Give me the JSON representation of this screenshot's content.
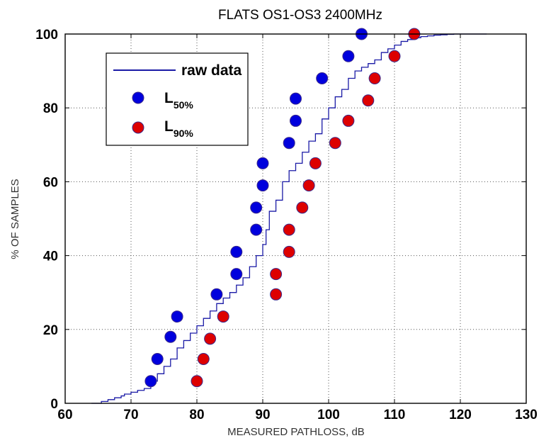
{
  "chart_data": {
    "type": "line",
    "title": "FLATS OS1-OS3  2400MHz",
    "xlabel": "MEASURED PATHLOSS, dB",
    "ylabel": "% OF SAMPLES",
    "xlim": [
      60,
      130
    ],
    "ylim": [
      0,
      100
    ],
    "xticks": [
      60,
      70,
      80,
      90,
      100,
      110,
      120,
      130
    ],
    "yticks": [
      0,
      20,
      40,
      60,
      80,
      100
    ],
    "grid": true,
    "legend_position": "top-left",
    "legend": [
      {
        "name": "raw data",
        "marker": "line"
      },
      {
        "name_main": "L",
        "name_sub": "50%",
        "marker": "circle"
      },
      {
        "name_main": "L",
        "name_sub": "90%",
        "marker": "circle"
      }
    ],
    "colors": {
      "raw": "#1a1aa6",
      "l50": "#0000dd",
      "l90": "#dd0000",
      "marker_edge": "#3a2a8c",
      "grid": "#555555"
    },
    "series": [
      {
        "name": "raw data",
        "type": "step",
        "x": [
          64,
          65.5,
          66.5,
          67.5,
          68.5,
          69,
          70,
          71,
          72,
          73,
          74,
          75,
          76,
          77,
          78,
          79,
          80,
          81,
          82,
          83,
          84,
          85,
          86,
          87,
          88,
          89,
          90,
          90.5,
          91,
          92,
          93,
          94,
          95,
          96,
          97,
          98,
          99,
          100,
          101,
          102,
          103,
          104,
          105,
          106,
          107,
          108,
          109,
          110,
          111,
          112,
          113,
          114,
          115,
          116,
          117,
          118,
          119,
          120,
          121,
          122,
          124
        ],
        "y": [
          0,
          0.5,
          1,
          1.5,
          2,
          2.5,
          3,
          3.5,
          4,
          6,
          8,
          10,
          12,
          15,
          17,
          19,
          21,
          23,
          25,
          27,
          28.5,
          30,
          32,
          34,
          37,
          40,
          43,
          47,
          52,
          55,
          60,
          63,
          65,
          68,
          71,
          73,
          77,
          80,
          83,
          85,
          88,
          90,
          91,
          92,
          93,
          95,
          96,
          97,
          98,
          98.5,
          99,
          99.3,
          99.5,
          99.7,
          99.8,
          99.9,
          100,
          100,
          100,
          100,
          100
        ]
      },
      {
        "name": "L 50%",
        "type": "scatter",
        "x": [
          73,
          74,
          76,
          77,
          83,
          86,
          86,
          89,
          89,
          90,
          90,
          94,
          95,
          95,
          99,
          103,
          105
        ],
        "y": [
          6,
          12,
          18,
          23.5,
          29.5,
          35,
          41,
          47,
          53,
          59,
          65,
          70.5,
          76.5,
          82.5,
          88,
          94,
          100
        ]
      },
      {
        "name": "L 90%",
        "type": "scatter",
        "x": [
          80,
          81,
          82,
          84,
          92,
          92,
          94,
          94,
          96,
          97,
          98,
          101,
          103,
          106,
          107,
          110,
          113
        ],
        "y": [
          6,
          12,
          17.5,
          23.5,
          29.5,
          35,
          41,
          47,
          53,
          59,
          65,
          70.5,
          76.5,
          82,
          88,
          94,
          100
        ]
      }
    ]
  }
}
